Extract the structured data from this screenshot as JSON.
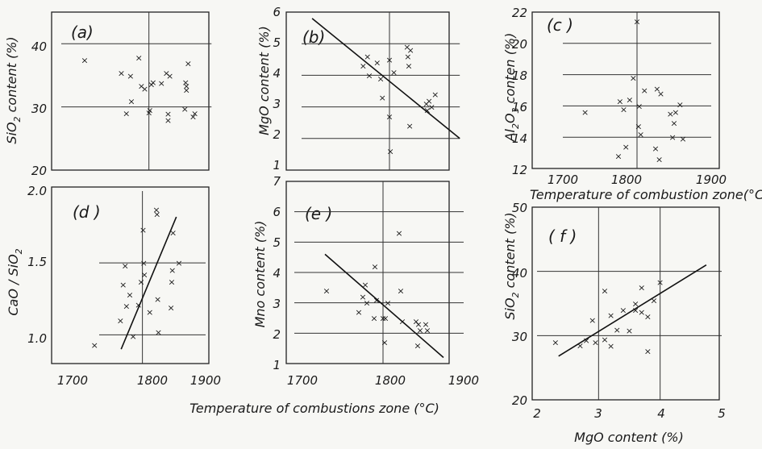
{
  "chart_data": [
    {
      "id": "a",
      "type": "scatter",
      "label": "(a)",
      "ylabel": "SiO2 content (%)",
      "xlabel": "",
      "xlim": [
        1700,
        1900
      ],
      "ylim": [
        20,
        45
      ],
      "xticks": [],
      "yticks": [
        "20",
        "30",
        "40"
      ],
      "x": [
        1728,
        1772,
        1778,
        1783,
        1784,
        1793,
        1796,
        1800,
        1805,
        1806,
        1808,
        1810,
        1820,
        1826,
        1828,
        1828,
        1830,
        1848,
        1849,
        1850,
        1850,
        1852,
        1858,
        1860
      ],
      "y": [
        37.4,
        35.4,
        29.0,
        34.9,
        30.9,
        37.8,
        33.3,
        32.9,
        29.1,
        29.5,
        33.6,
        33.9,
        33.8,
        35.4,
        28.9,
        27.9,
        34.9,
        29.7,
        33.9,
        33.3,
        32.7,
        36.9,
        28.5,
        29.0
      ],
      "trend": null
    },
    {
      "id": "b",
      "type": "scatter",
      "label": "(b)",
      "ylabel": "MgO content (%)",
      "xlabel": "",
      "xlim": [
        1700,
        1900
      ],
      "ylim": [
        1,
        6
      ],
      "xticks": [],
      "yticks": [
        "1",
        "2",
        "3",
        "4",
        "5",
        "6"
      ],
      "x": [
        1770,
        1775,
        1777,
        1786,
        1790,
        1792,
        1800,
        1800,
        1801,
        1805,
        1820,
        1821,
        1822,
        1823,
        1824,
        1842,
        1843,
        1845,
        1848,
        1852
      ],
      "y": [
        4.3,
        4.6,
        4.0,
        4.4,
        3.9,
        3.3,
        2.7,
        4.5,
        1.6,
        4.1,
        4.9,
        4.6,
        4.3,
        2.4,
        4.8,
        3.1,
        2.9,
        3.2,
        3.0,
        3.4
      ],
      "trend": {
        "x": [
          1712,
          1880
        ],
        "y": [
          5.8,
          2.0
        ]
      }
    },
    {
      "id": "c",
      "type": "scatter",
      "label": "(c)",
      "ylabel": "Al2O3 content (%)",
      "xlabel": "Temperature of combustion zone (°C)",
      "xlim": [
        1700,
        1900
      ],
      "ylim": [
        12,
        22
      ],
      "xticks": [
        "1700",
        "1800",
        "1900"
      ],
      "yticks": [
        "12",
        "14",
        "16",
        "18",
        "20",
        "22"
      ],
      "x": [
        1730,
        1775,
        1777,
        1782,
        1785,
        1790,
        1795,
        1800,
        1802,
        1803,
        1805,
        1810,
        1825,
        1827,
        1830,
        1832,
        1845,
        1848,
        1850,
        1852,
        1858,
        1862
      ],
      "y": [
        15.6,
        12.8,
        16.3,
        15.8,
        13.4,
        16.4,
        17.8,
        21.4,
        14.7,
        16.0,
        14.2,
        17.0,
        13.3,
        17.1,
        12.6,
        16.8,
        15.5,
        14.0,
        14.9,
        15.6,
        16.1,
        13.9
      ],
      "trend": null
    },
    {
      "id": "d",
      "type": "scatter",
      "label": "(d)",
      "ylabel": "CaO / SiO2",
      "xlabel": "",
      "xlim": [
        1700,
        1900
      ],
      "ylim": [
        0.8,
        2.0
      ],
      "xticks": [
        "1700",
        "1800",
        "1900"
      ],
      "yticks": [
        "1.0",
        "1.5",
        "2.0"
      ],
      "x": [
        1733,
        1772,
        1776,
        1779,
        1781,
        1786,
        1791,
        1799,
        1803,
        1806,
        1807,
        1808,
        1816,
        1826,
        1827,
        1828,
        1829,
        1848,
        1849,
        1850,
        1851,
        1860
      ],
      "y": [
        0.93,
        1.1,
        1.35,
        1.48,
        1.2,
        1.28,
        0.99,
        1.21,
        1.37,
        1.73,
        1.5,
        1.42,
        1.16,
        1.87,
        1.84,
        1.25,
        1.02,
        1.19,
        1.37,
        1.45,
        1.71,
        1.5
      ],
      "trend": {
        "x": [
          1773,
          1856
        ],
        "y": [
          0.9,
          1.82
        ]
      }
    },
    {
      "id": "e",
      "type": "scatter",
      "label": "(e)",
      "ylabel": "Mno content (%)",
      "xlabel": "",
      "xlim": [
        1700,
        1900
      ],
      "ylim": [
        1,
        7
      ],
      "xticks": [
        "1700",
        "1800",
        "1900"
      ],
      "yticks": [
        "1",
        "2",
        "3",
        "4",
        "5",
        "6",
        "7"
      ],
      "x": [
        1730,
        1770,
        1775,
        1778,
        1780,
        1789,
        1790,
        1792,
        1800,
        1802,
        1803,
        1806,
        1820,
        1822,
        1824,
        1841,
        1843,
        1844,
        1846,
        1853,
        1855
      ],
      "y": [
        3.4,
        2.7,
        3.2,
        3.6,
        3.0,
        2.5,
        4.2,
        3.1,
        2.5,
        1.7,
        2.5,
        3.0,
        5.3,
        3.4,
        2.4,
        2.4,
        1.6,
        2.3,
        2.1,
        2.3,
        2.1
      ],
      "trend": {
        "x": [
          1728,
          1875
        ],
        "y": [
          4.6,
          1.2
        ]
      }
    },
    {
      "id": "f",
      "type": "scatter",
      "label": "(f)",
      "ylabel": "SiO2 content (%)",
      "xlabel": "MgO content (%)",
      "xlim": [
        2,
        5
      ],
      "ylim": [
        20,
        50
      ],
      "xticks": [
        "2",
        "3",
        "4",
        "5"
      ],
      "yticks": [
        "20",
        "30",
        "40",
        "50"
      ],
      "x": [
        2.3,
        2.7,
        2.8,
        2.9,
        3.1,
        3.2,
        3.2,
        3.3,
        3.4,
        3.5,
        3.6,
        3.6,
        3.7,
        3.7,
        3.8,
        3.8,
        3.9,
        4.0,
        3.1,
        2.95
      ],
      "y": [
        29.0,
        28.5,
        29.3,
        32.4,
        37.0,
        33.2,
        28.4,
        30.9,
        34.0,
        30.8,
        35.0,
        34.0,
        37.5,
        33.7,
        33.0,
        27.6,
        35.5,
        38.3,
        29.4,
        29.0
      ],
      "trend": {
        "x": [
          2.35,
          4.75
        ],
        "y": [
          26.8,
          41.0
        ]
      }
    }
  ],
  "labels": {
    "a": {
      "panel": "(a)",
      "ylabel_main": "SiO",
      "ylabel_sub": "2",
      "ylabel_rest": " content (%)",
      "yticks": [
        "20",
        "30",
        "40"
      ]
    },
    "b": {
      "panel": "(b)",
      "ylabel": "MgO  content (%)",
      "yticks": [
        "1",
        "2",
        "3",
        "4",
        "5",
        "6"
      ]
    },
    "c": {
      "panel": "(c )",
      "ylabel_main": "Al",
      "ylabel_sub1": "2",
      "ylabel_mid": "O",
      "ylabel_sub2": "3",
      "ylabel_rest": " conten (%)",
      "yticks": [
        "12",
        "14",
        "16",
        "18",
        "20",
        "22"
      ],
      "xticks": [
        "1700",
        "1800",
        "1900"
      ],
      "xlabel": "Temperature of combustion zone(°C)"
    },
    "d": {
      "panel": "(d )",
      "ylabel_main": "CaO / SiO",
      "ylabel_sub": "2",
      "yticks": [
        "1.0",
        "1.5",
        "2.0"
      ],
      "xticks": [
        "1700",
        "1800",
        "1900"
      ]
    },
    "e": {
      "panel": "(e )",
      "ylabel": "Mno  content (%)",
      "yticks": [
        "1",
        "2",
        "3",
        "4",
        "5",
        "6",
        "7"
      ],
      "xticks": [
        "1700",
        "1800",
        "1900"
      ]
    },
    "f": {
      "panel": "( f )",
      "ylabel_main": "SiO",
      "ylabel_sub": "2",
      "ylabel_rest": " content (%)",
      "yticks": [
        "20",
        "30",
        "40",
        "50"
      ],
      "xticks": [
        "2",
        "3",
        "4",
        "5"
      ],
      "xlabel": "MgO  content (%)"
    },
    "bottom_xlabel": "Temperature  of  combustions  zone (°C)"
  }
}
